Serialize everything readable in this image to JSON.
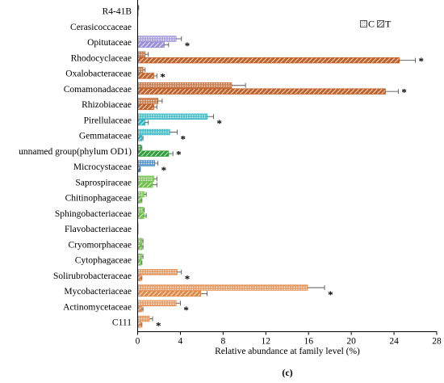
{
  "chart_data": {
    "type": "bar",
    "orientation": "horizontal",
    "xlabel": "Relative abundance at family level (%)",
    "xlim": [
      0,
      28
    ],
    "xticks": [
      0,
      4,
      8,
      12,
      16,
      20,
      24,
      28
    ],
    "panel_label": "(c)",
    "legend": {
      "placement": "top-right",
      "entries": [
        "C",
        "T"
      ]
    },
    "significance_marker": "*",
    "categories": [
      {
        "name": "R4-41B",
        "color": "#8c8c8c",
        "C": 0.05,
        "C_err": 0.05,
        "T": 0.05,
        "T_err": 0.0,
        "sig": false
      },
      {
        "name": "Cerasicoccaceae",
        "color": "#8c8c8c",
        "C": 0.0,
        "C_err": 0.0,
        "T": 0.0,
        "T_err": 0.0,
        "sig": false
      },
      {
        "name": "Opitutaceae",
        "color": "#9a8fd8",
        "C": 3.6,
        "C_err": 0.5,
        "T": 2.5,
        "T_err": 0.4,
        "sig": true
      },
      {
        "name": "Rhodocyclaceae",
        "color": "#c0622a",
        "C": 0.7,
        "C_err": 0.3,
        "T": 24.5,
        "T_err": 1.5,
        "sig": true
      },
      {
        "name": "Oxalobacteraceae",
        "color": "#c0622a",
        "C": 0.5,
        "C_err": 0.2,
        "T": 1.5,
        "T_err": 0.3,
        "sig": true
      },
      {
        "name": "Comamonadaceae",
        "color": "#c0622a",
        "C": 8.8,
        "C_err": 1.3,
        "T": 23.2,
        "T_err": 1.2,
        "sig": true
      },
      {
        "name": "Rhizobiaceae",
        "color": "#c0622a",
        "C": 1.9,
        "C_err": 0.4,
        "T": 1.5,
        "T_err": 0.3,
        "sig": false
      },
      {
        "name": "Pirellulaceae",
        "color": "#2cb5c3",
        "C": 6.5,
        "C_err": 0.6,
        "T": 0.7,
        "T_err": 0.3,
        "sig": true
      },
      {
        "name": "Gemmataceae",
        "color": "#2cb5c3",
        "C": 3.0,
        "C_err": 0.7,
        "T": 0.4,
        "T_err": 0.1,
        "sig": true
      },
      {
        "name": "unnamed group(phylum OD1)",
        "color": "#2e9e3a",
        "C": 0.3,
        "C_err": 0.1,
        "T": 2.9,
        "T_err": 0.4,
        "sig": true
      },
      {
        "name": "Microcystaceae",
        "color": "#3b83c6",
        "C": 1.6,
        "C_err": 0.3,
        "T": 0.2,
        "T_err": 0.05,
        "sig": true
      },
      {
        "name": "Saprospiraceae",
        "color": "#6fbf4a",
        "C": 1.5,
        "C_err": 0.3,
        "T": 1.4,
        "T_err": 0.4,
        "sig": false
      },
      {
        "name": "Chitinophagaceae",
        "color": "#6fbf4a",
        "C": 0.6,
        "C_err": 0.2,
        "T": 0.3,
        "T_err": 0.1,
        "sig": false
      },
      {
        "name": "Sphingobacteriaceae",
        "color": "#6fbf4a",
        "C": 0.5,
        "C_err": 0.1,
        "T": 0.6,
        "T_err": 0.2,
        "sig": false
      },
      {
        "name": "Flavobacteriaceae",
        "color": "#6fbf4a",
        "C": 0.05,
        "C_err": 0.0,
        "T": 0.05,
        "T_err": 0.0,
        "sig": false
      },
      {
        "name": "Cryomorphaceae",
        "color": "#6fbf4a",
        "C": 0.4,
        "C_err": 0.1,
        "T": 0.4,
        "T_err": 0.1,
        "sig": false
      },
      {
        "name": "Cytophagaceae",
        "color": "#6fbf4a",
        "C": 0.4,
        "C_err": 0.1,
        "T": 0.3,
        "T_err": 0.1,
        "sig": false
      },
      {
        "name": "Solirubrobacteraceae",
        "color": "#e08a4a",
        "C": 3.7,
        "C_err": 0.4,
        "T": 0.3,
        "T_err": 0.1,
        "sig": true
      },
      {
        "name": "Mycobacteriaceae",
        "color": "#e08a4a",
        "C": 15.9,
        "C_err": 1.6,
        "T": 5.9,
        "T_err": 0.6,
        "sig": true
      },
      {
        "name": "Actinomycetaceae",
        "color": "#e08a4a",
        "C": 3.6,
        "C_err": 0.4,
        "T": 0.4,
        "T_err": 0.1,
        "sig": true
      },
      {
        "name": "C111",
        "color": "#e08a4a",
        "C": 1.1,
        "C_err": 0.3,
        "T": 0.3,
        "T_err": 0.1,
        "sig": true
      }
    ]
  }
}
